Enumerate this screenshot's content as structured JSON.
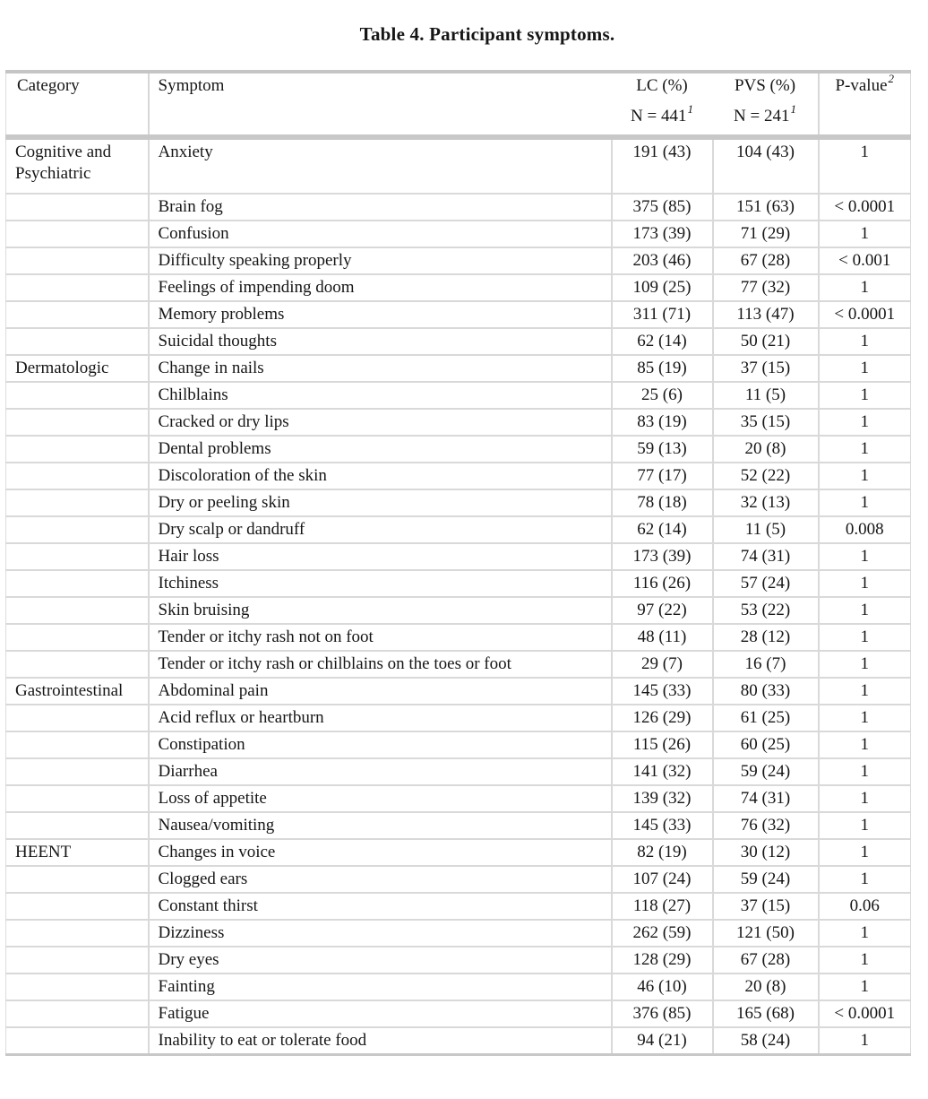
{
  "page": {
    "title": "Table 4. Participant symptoms."
  },
  "table": {
    "header": {
      "category": "Category",
      "symptom": "Symptom",
      "lc": {
        "label": "LC (%)",
        "n": "N = 441",
        "sup": "1"
      },
      "pvs": {
        "label": "PVS (%)",
        "n": "N = 241",
        "sup": "1"
      },
      "p": {
        "label": "P-value",
        "sup": "2"
      }
    },
    "rows": [
      {
        "category": "Cognitive and Psychiatric",
        "symptom": "Anxiety",
        "lc": "191 (43)",
        "pvs": "104 (43)",
        "p": "1"
      },
      {
        "category": "",
        "symptom": "Brain fog",
        "lc": "375 (85)",
        "pvs": "151 (63)",
        "p": "< 0.0001"
      },
      {
        "category": "",
        "symptom": "Confusion",
        "lc": "173 (39)",
        "pvs": "71 (29)",
        "p": "1"
      },
      {
        "category": "",
        "symptom": "Difficulty speaking properly",
        "lc": "203 (46)",
        "pvs": "67 (28)",
        "p": "< 0.001"
      },
      {
        "category": "",
        "symptom": "Feelings of impending doom",
        "lc": "109 (25)",
        "pvs": "77 (32)",
        "p": "1"
      },
      {
        "category": "",
        "symptom": "Memory problems",
        "lc": "311 (71)",
        "pvs": "113 (47)",
        "p": "< 0.0001"
      },
      {
        "category": "",
        "symptom": "Suicidal thoughts",
        "lc": "62 (14)",
        "pvs": "50 (21)",
        "p": "1"
      },
      {
        "category": "Dermatologic",
        "symptom": "Change in nails",
        "lc": "85 (19)",
        "pvs": "37 (15)",
        "p": "1"
      },
      {
        "category": "",
        "symptom": "Chilblains",
        "lc": "25 (6)",
        "pvs": "11 (5)",
        "p": "1"
      },
      {
        "category": "",
        "symptom": "Cracked or dry lips",
        "lc": "83 (19)",
        "pvs": "35 (15)",
        "p": "1"
      },
      {
        "category": "",
        "symptom": "Dental problems",
        "lc": "59 (13)",
        "pvs": "20 (8)",
        "p": "1"
      },
      {
        "category": "",
        "symptom": "Discoloration of the skin",
        "lc": "77 (17)",
        "pvs": "52 (22)",
        "p": "1"
      },
      {
        "category": "",
        "symptom": "Dry or peeling skin",
        "lc": "78 (18)",
        "pvs": "32 (13)",
        "p": "1"
      },
      {
        "category": "",
        "symptom": "Dry scalp or dandruff",
        "lc": "62 (14)",
        "pvs": "11 (5)",
        "p": "0.008"
      },
      {
        "category": "",
        "symptom": "Hair loss",
        "lc": "173 (39)",
        "pvs": "74 (31)",
        "p": "1"
      },
      {
        "category": "",
        "symptom": "Itchiness",
        "lc": "116 (26)",
        "pvs": "57 (24)",
        "p": "1"
      },
      {
        "category": "",
        "symptom": "Skin bruising",
        "lc": "97 (22)",
        "pvs": "53 (22)",
        "p": "1"
      },
      {
        "category": "",
        "symptom": "Tender or itchy rash not on foot",
        "lc": "48 (11)",
        "pvs": "28 (12)",
        "p": "1"
      },
      {
        "category": "",
        "symptom": "Tender or itchy rash or chilblains on the toes or foot",
        "lc": "29 (7)",
        "pvs": "16 (7)",
        "p": "1"
      },
      {
        "category": "Gastrointestinal",
        "symptom": "Abdominal pain",
        "lc": "145 (33)",
        "pvs": "80 (33)",
        "p": "1"
      },
      {
        "category": "",
        "symptom": "Acid reflux or heartburn",
        "lc": "126 (29)",
        "pvs": "61 (25)",
        "p": "1"
      },
      {
        "category": "",
        "symptom": "Constipation",
        "lc": "115 (26)",
        "pvs": "60 (25)",
        "p": "1"
      },
      {
        "category": "",
        "symptom": "Diarrhea",
        "lc": "141 (32)",
        "pvs": "59 (24)",
        "p": "1"
      },
      {
        "category": "",
        "symptom": "Loss of appetite",
        "lc": "139 (32)",
        "pvs": "74 (31)",
        "p": "1"
      },
      {
        "category": "",
        "symptom": "Nausea/vomiting",
        "lc": "145 (33)",
        "pvs": "76 (32)",
        "p": "1"
      },
      {
        "category": "HEENT",
        "symptom": "Changes in voice",
        "lc": "82 (19)",
        "pvs": "30 (12)",
        "p": "1"
      },
      {
        "category": "",
        "symptom": "Clogged ears",
        "lc": "107 (24)",
        "pvs": "59 (24)",
        "p": "1"
      },
      {
        "category": "",
        "symptom": "Constant thirst",
        "lc": "118 (27)",
        "pvs": "37 (15)",
        "p": "0.06"
      },
      {
        "category": "",
        "symptom": "Dizziness",
        "lc": "262 (59)",
        "pvs": "121 (50)",
        "p": "1"
      },
      {
        "category": "",
        "symptom": "Dry eyes",
        "lc": "128 (29)",
        "pvs": "67 (28)",
        "p": "1"
      },
      {
        "category": "",
        "symptom": "Fainting",
        "lc": "46 (10)",
        "pvs": "20 (8)",
        "p": "1"
      },
      {
        "category": "",
        "symptom": "Fatigue",
        "lc": "376 (85)",
        "pvs": "165 (68)",
        "p": "< 0.0001"
      },
      {
        "category": "",
        "symptom": "Inability to eat or tolerate food",
        "lc": "94 (21)",
        "pvs": "58 (24)",
        "p": "1"
      }
    ]
  }
}
